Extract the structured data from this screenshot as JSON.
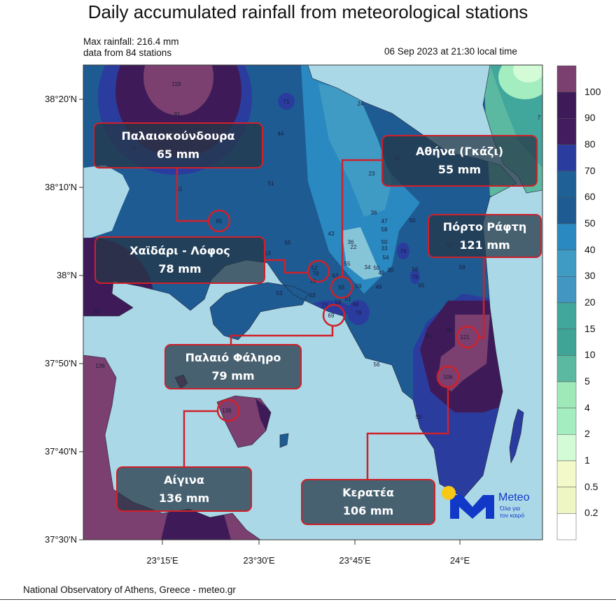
{
  "title": "Daily accumulated rainfall from meteorological stations",
  "header": {
    "max_rainfall": "Max rainfall: 216.4 mm",
    "stations_count": "data from 84 stations",
    "datetime": "06 Sep 2023 at 21:30 local time"
  },
  "footer": "National Observatory of Athens, Greece - meteo.gr",
  "axes": {
    "lat_ticks": [
      "38°20'N",
      "38°10'N",
      "38°N",
      "37°50'N",
      "37°40'N",
      "37°30'N"
    ],
    "lon_ticks": [
      "23°15'E",
      "23°30'E",
      "23°45'E",
      "24°E"
    ]
  },
  "colorbar": {
    "labels": [
      "100",
      "90",
      "80",
      "70",
      "60",
      "50",
      "40",
      "30",
      "20",
      "15",
      "10",
      "5",
      "4",
      "2",
      "1",
      "0.5",
      "0.2"
    ],
    "colors": [
      "#7b4070",
      "#3e1b58",
      "#421c5e",
      "#2b3c9f",
      "#1f6096",
      "#1e5b92",
      "#2a89c0",
      "#3f9bc4",
      "#4296c2",
      "#41a69b",
      "#3fa396",
      "#5cb9a1",
      "#9fe9b9",
      "#a3edc1",
      "#d2fbd6",
      "#f3f9c9",
      "#eef6c4",
      "#ffffff"
    ]
  },
  "map_colors": {
    "sea": "#aad8e7",
    "border": "#d0202a"
  },
  "callouts": [
    {
      "name": "Παλαιοκούνδουρα",
      "value": "65 mm"
    },
    {
      "name": "Χαϊδάρι - Λόφος",
      "value": "78 mm"
    },
    {
      "name": "Αθήνα (Γκάζι)",
      "value": "55 mm"
    },
    {
      "name": "Πόρτο Ράφτη",
      "value": "121 mm"
    },
    {
      "name": "Παλαιό Φάληρο",
      "value": "79 mm"
    },
    {
      "name": "Αίγινα",
      "value": "136 mm"
    },
    {
      "name": "Κερατέα",
      "value": "106 mm"
    }
  ],
  "stations": [
    "118",
    "91",
    "71",
    "44",
    "59",
    "51",
    "51",
    "65",
    "55",
    "53",
    "52",
    "78",
    "70",
    "63",
    "53",
    "24",
    "32",
    "23",
    "36",
    "47",
    "58",
    "43",
    "36",
    "22",
    "50",
    "50",
    "33",
    "54",
    "76",
    "55",
    "34",
    "50",
    "49",
    "30",
    "63",
    "55",
    "59",
    "49",
    "56",
    "78",
    "65",
    "52",
    "59",
    "59",
    "61",
    "68",
    "78",
    "72",
    "69",
    "99",
    "81",
    "121",
    "106",
    "56",
    "55",
    "93",
    "136",
    "136",
    "7"
  ],
  "logo": {
    "brand": "Meteo",
    "tagline_1": "Όλα για",
    "tagline_2": "τον καιρό",
    "sun_color": "#f7c815",
    "brand_color": "#1238c8"
  }
}
